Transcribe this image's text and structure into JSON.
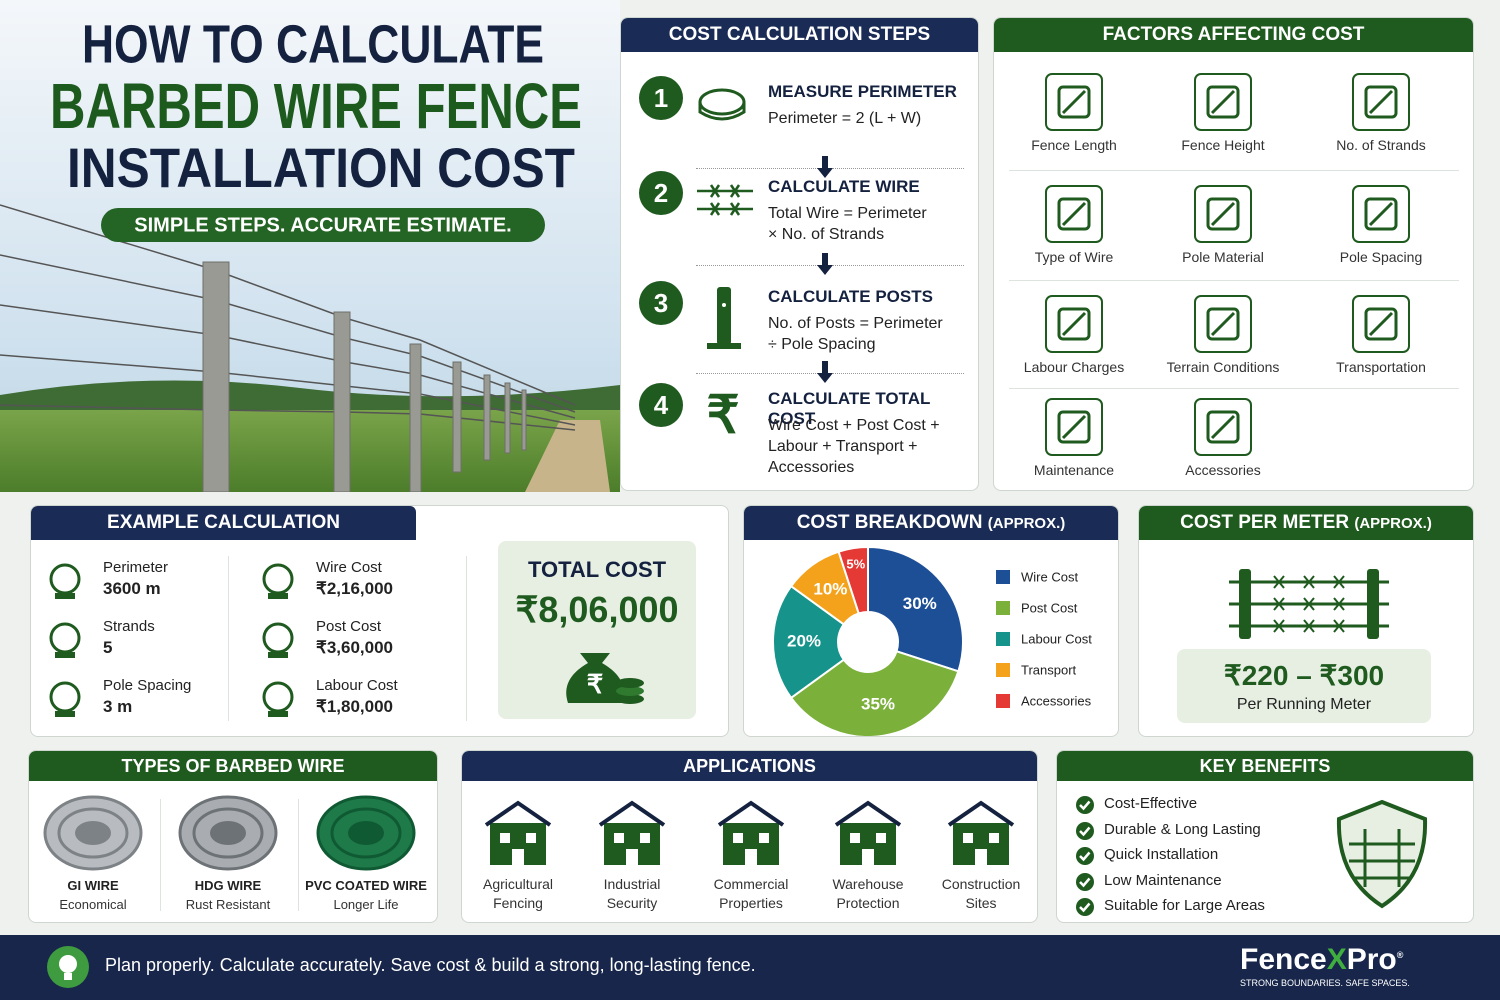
{
  "hero": {
    "title_line1": "HOW TO CALCULATE",
    "title_line2": "BARBED WIRE FENCE",
    "title_line3": "INSTALLATION COST",
    "tagline": "SIMPLE STEPS. ACCURATE ESTIMATE."
  },
  "steps": {
    "title": "COST CALCULATION STEPS",
    "items": [
      {
        "number": "1",
        "heading": "MEASURE PERIMETER",
        "lines": [
          "Perimeter = 2 (L + W)"
        ]
      },
      {
        "number": "2",
        "heading": "CALCULATE WIRE",
        "lines": [
          "Total Wire = Perimeter",
          "× No. of Strands"
        ]
      },
      {
        "number": "3",
        "heading": "CALCULATE POSTS",
        "lines": [
          "No. of Posts = Perimeter",
          "÷ Pole Spacing"
        ]
      },
      {
        "number": "4",
        "heading": "CALCULATE TOTAL COST",
        "lines": [
          "Wire Cost + Post Cost +",
          "Labour + Transport +",
          "Accessories"
        ]
      }
    ]
  },
  "factors": {
    "title": "FACTORS AFFECTING COST",
    "items": [
      "Fence Length",
      "Fence Height",
      "No. of Strands",
      "Type of Wire",
      "Pole Material",
      "Pole Spacing",
      "Labour Charges",
      "Terrain Conditions",
      "Transportation",
      "Maintenance",
      "Accessories"
    ]
  },
  "example": {
    "title": "EXAMPLE CALCULATION",
    "items": [
      {
        "label": "Perimeter",
        "value": "3600 m"
      },
      {
        "label": "Strands",
        "value": "5"
      },
      {
        "label": "Pole Spacing",
        "value": "3 m"
      },
      {
        "label": "Wire Cost",
        "value": "₹2,16,000"
      },
      {
        "label": "Post Cost",
        "value": "₹3,60,000"
      },
      {
        "label": "Labour Cost",
        "value": "₹1,80,000"
      }
    ],
    "total_label": "TOTAL COST",
    "total_value": "₹8,06,000"
  },
  "chart_data": {
    "type": "pie",
    "title": "COST BREAKDOWN",
    "title_note": "(APPROX.)",
    "categories": [
      "Wire Cost",
      "Post Cost",
      "Labour Cost",
      "Transport",
      "Accessories"
    ],
    "values": [
      30,
      35,
      20,
      10,
      5
    ],
    "value_labels": [
      "30%",
      "35%",
      "20%",
      "10%",
      "5%"
    ],
    "colors": [
      "#1d4f97",
      "#7bb03a",
      "#16938a",
      "#f4a21b",
      "#e53935"
    ]
  },
  "per_meter": {
    "title": "COST PER METER",
    "title_note": "(APPROX.)",
    "range": "₹220 – ₹300",
    "unit": "Per Running Meter"
  },
  "wire_types": {
    "title": "TYPES OF BARBED WIRE",
    "items": [
      {
        "name": "GI WIRE",
        "note": "Economical"
      },
      {
        "name": "HDG WIRE",
        "note": "Rust Resistant"
      },
      {
        "name": "PVC COATED WIRE",
        "note": "Longer Life"
      }
    ]
  },
  "applications": {
    "title": "APPLICATIONS",
    "items": [
      [
        "Agricultural",
        "Fencing"
      ],
      [
        "Industrial",
        "Security"
      ],
      [
        "Commercial",
        "Properties"
      ],
      [
        "Warehouse",
        "Protection"
      ],
      [
        "Construction",
        "Sites"
      ]
    ]
  },
  "benefits": {
    "title": "KEY BENEFITS",
    "items": [
      "Cost-Effective",
      "Durable & Long Lasting",
      "Quick Installation",
      "Low Maintenance",
      "Suitable for Large Areas"
    ]
  },
  "footer": {
    "message": "Plan properly. Calculate accurately. Save cost & build a strong, long-lasting fence.",
    "brand_a": "Fence",
    "brand_x": "X",
    "brand_b": "Pro",
    "brand_mark": "®",
    "brand_tagline": "STRONG BOUNDARIES. SAFE SPACES."
  }
}
